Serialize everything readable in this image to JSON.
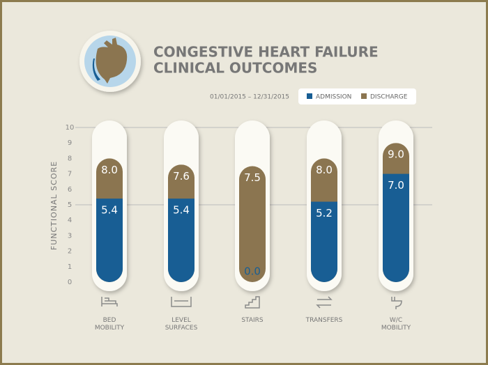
{
  "chart_data": {
    "type": "bar",
    "title": [
      "CONGESTIVE HEART FAILURE",
      "CLINICAL OUTCOMES"
    ],
    "date_range": "01/01/2015 – 12/31/2015",
    "y_label": "FUNCTIONAL SCORE",
    "categories": [
      "BED MOBILITY",
      "LEVEL SURFACES",
      "STAIRS",
      "TRANSFERS",
      "W/C MOBILITY"
    ],
    "series": [
      {
        "name": "ADMISSION",
        "color": "#185e94",
        "values": [
          5.4,
          5.4,
          0.0,
          5.2,
          7.0
        ],
        "value_labels": [
          "5.4",
          "5.4",
          "0.0",
          "5.2",
          "7.0"
        ]
      },
      {
        "name": "DISCHARGE",
        "color": "#8b7550",
        "values": [
          8.0,
          7.6,
          7.5,
          8.0,
          9.0
        ],
        "value_labels": [
          "8.0",
          "7.6",
          "7.5",
          "8.0",
          "9.0"
        ]
      }
    ],
    "ylim": [
      0,
      10
    ],
    "yticks": [
      0,
      1,
      2,
      3,
      4,
      5,
      6,
      7,
      8,
      9,
      10
    ],
    "gridlines": [
      5,
      10
    ]
  }
}
